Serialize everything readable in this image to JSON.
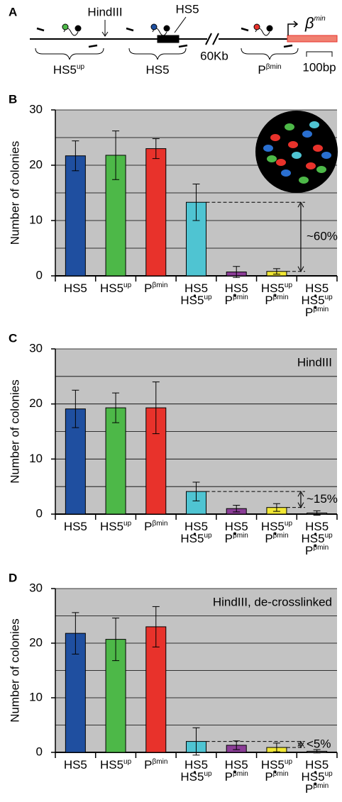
{
  "diagram": {
    "panel": "A",
    "hindiii": "HindIII",
    "hs5_pointer": "HS5",
    "gap": "60Kb",
    "scale": "100bp",
    "gene": {
      "text": "β",
      "sup": "min"
    },
    "regions": [
      {
        "text": "HS5",
        "sup": "up"
      },
      {
        "text": "HS5"
      },
      {
        "text": "P",
        "sup": "βmin"
      }
    ]
  },
  "chart_data": [
    {
      "type": "bar",
      "panel": "B",
      "ylabel": "Number of colonies",
      "ylim": [
        0,
        30
      ],
      "yticks": [
        0,
        10,
        20,
        30
      ],
      "minor_yticks": [
        5,
        15,
        25
      ],
      "grid": true,
      "categories": [
        [
          {
            "text": "HS5"
          }
        ],
        [
          {
            "text": "HS5",
            "sup": "up"
          }
        ],
        [
          {
            "text": "P",
            "sup": "βmin"
          }
        ],
        [
          {
            "text": "HS5"
          },
          {
            "text": "HS5",
            "sup": "up"
          }
        ],
        [
          {
            "text": "HS5"
          },
          {
            "text": "P",
            "sup": "βmin"
          }
        ],
        [
          {
            "text": "HS5",
            "sup": "up"
          },
          {
            "text": "P",
            "sup": "βmin"
          }
        ],
        [
          {
            "text": "HS5"
          },
          {
            "text": "HS5",
            "sup": "up"
          },
          {
            "text": "P",
            "sup": "βmin"
          }
        ]
      ],
      "values": [
        21.7,
        21.8,
        23,
        13.3,
        0.7,
        0.8,
        0
      ],
      "errors": [
        2.7,
        4.4,
        1.8,
        3.3,
        1.0,
        0.5,
        0
      ],
      "colors": [
        "#1f4fa0",
        "#4db848",
        "#e8322b",
        "#4fc4d2",
        "#8b3d97",
        "#f2e835",
        "#888888"
      ],
      "bracket": "~60%"
    },
    {
      "type": "bar",
      "panel": "C",
      "ylabel": "Number of colonies",
      "ylim": [
        0,
        30
      ],
      "yticks": [
        0,
        10,
        20,
        30
      ],
      "minor_yticks": [
        5,
        15,
        25
      ],
      "grid": true,
      "annotation": "HindIII",
      "categories": [
        [
          {
            "text": "HS5"
          }
        ],
        [
          {
            "text": "HS5",
            "sup": "up"
          }
        ],
        [
          {
            "text": "P",
            "sup": "βmin"
          }
        ],
        [
          {
            "text": "HS5"
          },
          {
            "text": "HS5",
            "sup": "up"
          }
        ],
        [
          {
            "text": "HS5"
          },
          {
            "text": "P",
            "sup": "βmin"
          }
        ],
        [
          {
            "text": "HS5",
            "sup": "up"
          },
          {
            "text": "P",
            "sup": "βmin"
          }
        ],
        [
          {
            "text": "HS5"
          },
          {
            "text": "HS5",
            "sup": "up"
          },
          {
            "text": "P",
            "sup": "βmin"
          }
        ]
      ],
      "values": [
        19.1,
        19.3,
        19.3,
        4.1,
        1.0,
        1.2,
        0.2
      ],
      "errors": [
        3.4,
        2.7,
        4.7,
        1.7,
        0.6,
        0.7,
        0.4
      ],
      "colors": [
        "#1f4fa0",
        "#4db848",
        "#e8322b",
        "#4fc4d2",
        "#8b3d97",
        "#f2e835",
        "#888888"
      ],
      "bracket": "~15%"
    },
    {
      "type": "bar",
      "panel": "D",
      "ylabel": "Number of colonies",
      "ylim": [
        0,
        30
      ],
      "yticks": [
        0,
        10,
        20,
        30
      ],
      "minor_yticks": [
        5,
        15,
        25
      ],
      "grid": true,
      "annotation": "HindIII, de-crosslinked",
      "categories": [
        [
          {
            "text": "HS5"
          }
        ],
        [
          {
            "text": "HS5",
            "sup": "up"
          }
        ],
        [
          {
            "text": "P",
            "sup": "βmin"
          }
        ],
        [
          {
            "text": "HS5"
          },
          {
            "text": "HS5",
            "sup": "up"
          }
        ],
        [
          {
            "text": "HS5"
          },
          {
            "text": "P",
            "sup": "βmin"
          }
        ],
        [
          {
            "text": "HS5",
            "sup": "up"
          },
          {
            "text": "P",
            "sup": "βmin"
          }
        ],
        [
          {
            "text": "HS5"
          },
          {
            "text": "HS5",
            "sup": "up"
          },
          {
            "text": "P",
            "sup": "βmin"
          }
        ]
      ],
      "values": [
        21.8,
        20.7,
        23.0,
        2.0,
        1.3,
        0.9,
        0.2
      ],
      "errors": [
        3.8,
        3.9,
        3.7,
        2.5,
        0.8,
        0.8,
        0.3
      ],
      "colors": [
        "#1f4fa0",
        "#4db848",
        "#e8322b",
        "#4fc4d2",
        "#8b3d97",
        "#f2e835",
        "#888888"
      ],
      "bracket": "<5%"
    }
  ]
}
